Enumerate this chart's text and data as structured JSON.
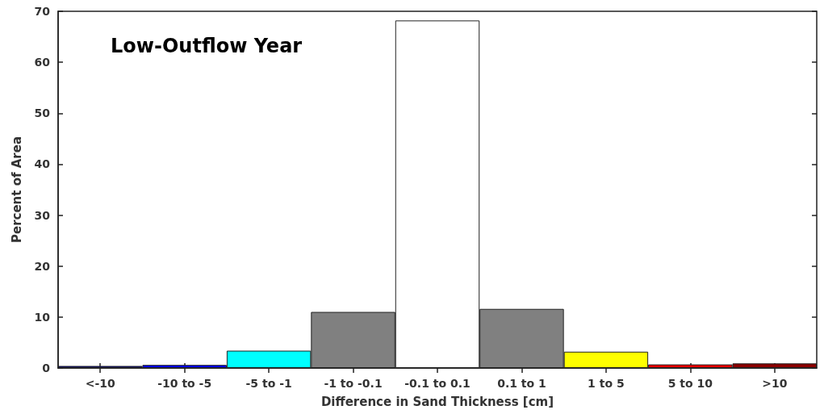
{
  "chart_data": {
    "type": "bar",
    "title": "Low-Outflow Year",
    "xlabel": "Difference in Sand Thickness [cm]",
    "ylabel": "Percent of Area",
    "categories": [
      "<-10",
      "-10 to -5",
      "-5 to -1",
      "-1 to -0.1",
      "-0.1 to 0.1",
      "0.1 to 1",
      "1 to 5",
      "5 to 10",
      ">10"
    ],
    "values": [
      0.4,
      0.6,
      3.4,
      11.0,
      68.2,
      11.6,
      3.2,
      0.7,
      0.9
    ],
    "colors": [
      "#00008b",
      "#0000ff",
      "#00ffff",
      "#808080",
      "#ffffff",
      "#808080",
      "#ffff00",
      "#ff0000",
      "#8b0000"
    ],
    "ylim": [
      0,
      70
    ],
    "yticks": [
      0,
      10,
      20,
      30,
      40,
      50,
      60,
      70
    ],
    "grid": false
  }
}
